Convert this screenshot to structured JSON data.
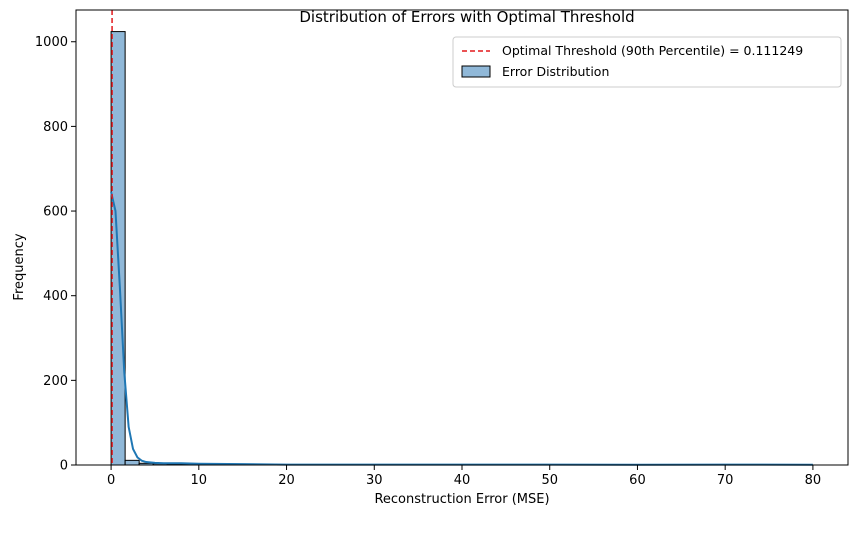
{
  "chart_data": {
    "type": "bar",
    "title": "Distribution of Errors with Optimal Threshold",
    "xlabel": "Reconstruction Error (MSE)",
    "ylabel": "Frequency",
    "xlim": [
      -4,
      84
    ],
    "ylim": [
      0,
      1075
    ],
    "xticks": [
      0,
      10,
      20,
      30,
      40,
      50,
      60,
      70,
      80
    ],
    "yticks": [
      0,
      200,
      400,
      600,
      800,
      1000
    ],
    "grid": false,
    "legend_position": "top-right",
    "bin_width": 1.6,
    "bins": [
      {
        "x0": 0.0,
        "x1": 1.6,
        "count": 1024
      },
      {
        "x0": 1.6,
        "x1": 3.2,
        "count": 11
      },
      {
        "x0": 3.2,
        "x1": 4.8,
        "count": 4
      },
      {
        "x0": 4.8,
        "x1": 6.4,
        "count": 3
      },
      {
        "x0": 6.4,
        "x1": 8.0,
        "count": 2
      },
      {
        "x0": 8.0,
        "x1": 9.6,
        "count": 2
      },
      {
        "x0": 9.6,
        "x1": 11.2,
        "count": 1
      },
      {
        "x0": 11.2,
        "x1": 12.8,
        "count": 1
      }
    ],
    "kde": {
      "x": [
        0.0,
        0.5,
        1.0,
        1.5,
        2.0,
        2.5,
        3.0,
        3.5,
        4.0,
        5.0,
        6.0,
        8.0,
        10.0,
        15.0,
        20.0,
        30.0,
        40.0,
        50.0,
        60.0,
        70.0,
        80.0
      ],
      "y": [
        645,
        600,
        420,
        220,
        90,
        38,
        18,
        10,
        7,
        5,
        4,
        4,
        3,
        2,
        1,
        1,
        1,
        1,
        0.5,
        1,
        0.5
      ]
    },
    "threshold": {
      "value": 0.111249,
      "label": "Optimal Threshold (90th Percentile) = 0.111249",
      "color": "#e3191c"
    },
    "histogram_legend_label": "Error Distribution",
    "colors": {
      "bar_fill": "#90b8d8",
      "bar_edge": "#000000",
      "kde_line": "#1f77b4",
      "threshold": "#e3191c"
    }
  }
}
